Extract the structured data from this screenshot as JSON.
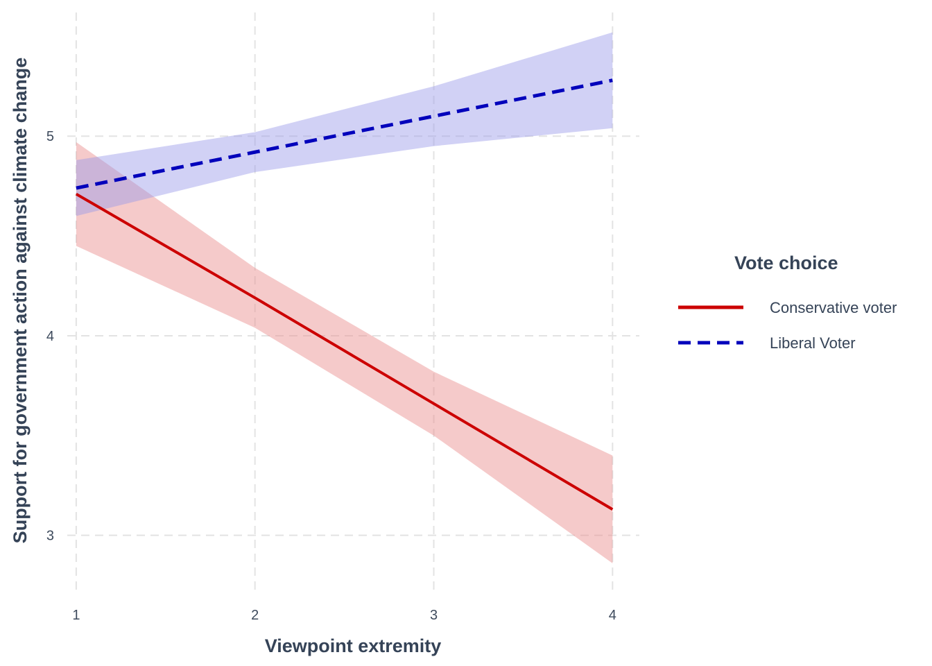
{
  "chart_data": {
    "type": "line",
    "xlabel": "Viewpoint extremity",
    "ylabel": "Support for government action against climate change",
    "xlim": [
      0.95,
      4.15
    ],
    "ylim": [
      2.7,
      5.55
    ],
    "x_ticks": [
      1,
      2,
      3,
      4
    ],
    "x_tick_labels": [
      "1",
      "2",
      "3",
      "4"
    ],
    "y_ticks": [
      3,
      4,
      5
    ],
    "y_tick_labels": [
      "3",
      "4",
      "5"
    ],
    "grid": true,
    "legend": {
      "title": "Vote choice",
      "position": "right"
    },
    "x": [
      1,
      2,
      3,
      4
    ],
    "series": [
      {
        "name": "Conservative voter",
        "color": "#cc0000",
        "line_style": "solid",
        "ribbon_color": "#e88a8a",
        "values": [
          4.71,
          4.19,
          3.66,
          3.13
        ],
        "lower": [
          4.45,
          4.04,
          3.5,
          2.86
        ],
        "upper": [
          4.97,
          4.34,
          3.82,
          3.4
        ]
      },
      {
        "name": "Liberal Voter",
        "color": "#0000bb",
        "line_style": "dashed",
        "ribbon_color": "#9999e8",
        "values": [
          4.74,
          4.92,
          5.1,
          5.28
        ],
        "lower": [
          4.6,
          4.82,
          4.95,
          5.04
        ],
        "upper": [
          4.88,
          5.02,
          5.25,
          5.52
        ]
      }
    ]
  }
}
